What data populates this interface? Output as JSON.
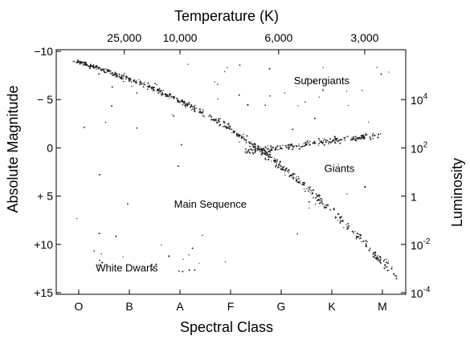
{
  "chart_data": {
    "type": "scatter",
    "title": "",
    "top_axis_label": "Temperature (K)",
    "left_axis_label": "Absolute Magnitude",
    "right_axis_label": "Luminosity",
    "bottom_axis_label": "Spectral Class",
    "magnitude_range": [
      -10,
      15
    ],
    "top_ticks": [
      {
        "label": "25,000",
        "class_pos": 0.9
      },
      {
        "label": "10,000",
        "class_pos": 2.0
      },
      {
        "label": "6,000",
        "class_pos": 3.95
      },
      {
        "label": "3,000",
        "class_pos": 5.65
      }
    ],
    "left_ticks": [
      {
        "label": "−10",
        "mag": -10
      },
      {
        "label": "− 5",
        "mag": -5
      },
      {
        "label": "0",
        "mag": 0
      },
      {
        "label": "+ 5",
        "mag": 5
      },
      {
        "label": "+10",
        "mag": 10
      },
      {
        "label": "+15",
        "mag": 15
      }
    ],
    "right_ticks": [
      {
        "base": "10",
        "exp": "4",
        "mag": -5
      },
      {
        "base": "10",
        "exp": "2",
        "mag": 0
      },
      {
        "base": "1",
        "exp": "",
        "mag": 5
      },
      {
        "base": "10",
        "exp": "-2",
        "mag": 10
      },
      {
        "base": "10",
        "exp": "-4",
        "mag": 15
      }
    ],
    "spectral_classes": [
      "O",
      "B",
      "A",
      "F",
      "G",
      "K",
      "M"
    ],
    "regions": [
      {
        "label": "Supergiants",
        "class_pos": 4.8,
        "mag": -6.6
      },
      {
        "label": "Giants",
        "class_pos": 5.15,
        "mag": 2.5
      },
      {
        "label": "Main Sequence",
        "class_pos": 2.6,
        "mag": 6.2
      },
      {
        "label": "White Dwarfs",
        "class_pos": 0.95,
        "mag": 12.8
      }
    ],
    "grid": false,
    "legend": "none"
  }
}
